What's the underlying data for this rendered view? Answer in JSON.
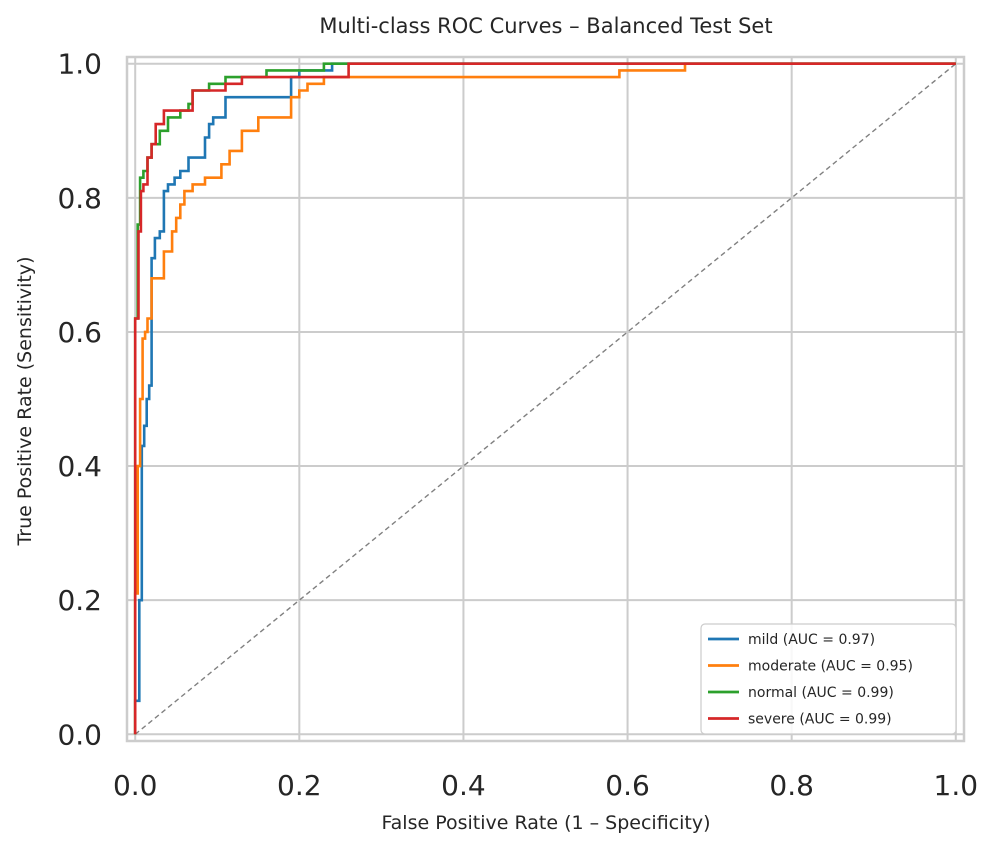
{
  "chart_data": {
    "type": "line",
    "title": "Multi-class ROC Curves – Balanced Test Set",
    "xlabel": "False Positive Rate (1 – Specificity)",
    "ylabel": "True Positive Rate (Sensitivity)",
    "xlim": [
      -0.01,
      1.01
    ],
    "ylim": [
      -0.01,
      1.01
    ],
    "xticks": [
      "0.0",
      "0.2",
      "0.4",
      "0.6",
      "0.8",
      "1.0"
    ],
    "yticks": [
      "0.0",
      "0.2",
      "0.4",
      "0.6",
      "0.8",
      "1.0"
    ],
    "grid": true,
    "legend_position": "bottom-right",
    "chance_line": {
      "x": [
        0,
        1
      ],
      "y": [
        0,
        1
      ],
      "color": "#808080",
      "style": "dashed"
    },
    "series": [
      {
        "name": "mild (AUC = 0.97)",
        "color": "#1f77b4",
        "x": [
          0,
          0,
          0.005,
          0.005,
          0.008,
          0.008,
          0.011,
          0.011,
          0.014,
          0.014,
          0.017,
          0.017,
          0.02,
          0.02,
          0.024,
          0.024,
          0.03,
          0.03,
          0.035,
          0.035,
          0.04,
          0.04,
          0.048,
          0.048,
          0.055,
          0.055,
          0.065,
          0.065,
          0.085,
          0.085,
          0.09,
          0.09,
          0.095,
          0.095,
          0.11,
          0.11,
          0.19,
          0.19,
          0.2,
          0.2,
          0.24,
          0.24,
          1
        ],
        "y": [
          0,
          0.05,
          0.05,
          0.2,
          0.2,
          0.43,
          0.43,
          0.46,
          0.46,
          0.5,
          0.5,
          0.52,
          0.52,
          0.71,
          0.71,
          0.74,
          0.74,
          0.75,
          0.75,
          0.81,
          0.81,
          0.82,
          0.82,
          0.83,
          0.83,
          0.84,
          0.84,
          0.86,
          0.86,
          0.89,
          0.89,
          0.91,
          0.91,
          0.92,
          0.92,
          0.95,
          0.95,
          0.98,
          0.98,
          0.99,
          0.99,
          1.0,
          1.0
        ]
      },
      {
        "name": "moderate (AUC = 0.95)",
        "color": "#ff7f0e",
        "x": [
          0,
          0,
          0.003,
          0.003,
          0.006,
          0.006,
          0.009,
          0.009,
          0.012,
          0.012,
          0.015,
          0.015,
          0.02,
          0.02,
          0.035,
          0.035,
          0.045,
          0.045,
          0.05,
          0.05,
          0.055,
          0.055,
          0.06,
          0.06,
          0.07,
          0.07,
          0.085,
          0.085,
          0.105,
          0.105,
          0.115,
          0.115,
          0.13,
          0.13,
          0.15,
          0.15,
          0.19,
          0.19,
          0.2,
          0.2,
          0.21,
          0.21,
          0.23,
          0.23,
          0.26,
          0.26,
          0.28,
          0.28,
          0.59,
          0.59,
          0.67,
          0.67,
          1
        ],
        "y": [
          0,
          0.21,
          0.21,
          0.4,
          0.4,
          0.5,
          0.5,
          0.59,
          0.59,
          0.6,
          0.6,
          0.62,
          0.62,
          0.68,
          0.68,
          0.72,
          0.72,
          0.75,
          0.75,
          0.77,
          0.77,
          0.79,
          0.79,
          0.81,
          0.81,
          0.82,
          0.82,
          0.83,
          0.83,
          0.85,
          0.85,
          0.87,
          0.87,
          0.9,
          0.9,
          0.92,
          0.92,
          0.95,
          0.95,
          0.96,
          0.96,
          0.97,
          0.97,
          0.98,
          0.98,
          0.98,
          0.98,
          0.98,
          0.98,
          0.99,
          0.99,
          1.0,
          1.0
        ]
      },
      {
        "name": "normal (AUC = 0.99)",
        "color": "#2ca02c",
        "x": [
          0,
          0,
          0.003,
          0.003,
          0.006,
          0.006,
          0.01,
          0.01,
          0.015,
          0.015,
          0.02,
          0.02,
          0.03,
          0.03,
          0.04,
          0.04,
          0.055,
          0.055,
          0.065,
          0.065,
          0.07,
          0.07,
          0.09,
          0.09,
          0.11,
          0.11,
          0.16,
          0.16,
          0.23,
          0.23,
          0.36,
          0.36,
          1
        ],
        "y": [
          0,
          0.62,
          0.62,
          0.76,
          0.76,
          0.83,
          0.83,
          0.84,
          0.84,
          0.86,
          0.86,
          0.88,
          0.88,
          0.9,
          0.9,
          0.92,
          0.92,
          0.93,
          0.93,
          0.94,
          0.94,
          0.96,
          0.96,
          0.97,
          0.97,
          0.98,
          0.98,
          0.99,
          0.99,
          1.0,
          1.0,
          1.0,
          1.0
        ]
      },
      {
        "name": "severe (AUC = 0.99)",
        "color": "#d62728",
        "x": [
          0,
          0,
          0.004,
          0.004,
          0.007,
          0.007,
          0.01,
          0.01,
          0.015,
          0.015,
          0.02,
          0.02,
          0.025,
          0.025,
          0.035,
          0.035,
          0.07,
          0.07,
          0.1,
          0.1,
          0.11,
          0.11,
          0.13,
          0.13,
          0.26,
          0.26,
          1
        ],
        "y": [
          0,
          0.62,
          0.62,
          0.75,
          0.75,
          0.81,
          0.81,
          0.82,
          0.82,
          0.86,
          0.86,
          0.88,
          0.88,
          0.91,
          0.91,
          0.93,
          0.93,
          0.96,
          0.96,
          0.96,
          0.96,
          0.97,
          0.97,
          0.98,
          0.98,
          1.0,
          1.0
        ]
      }
    ]
  }
}
